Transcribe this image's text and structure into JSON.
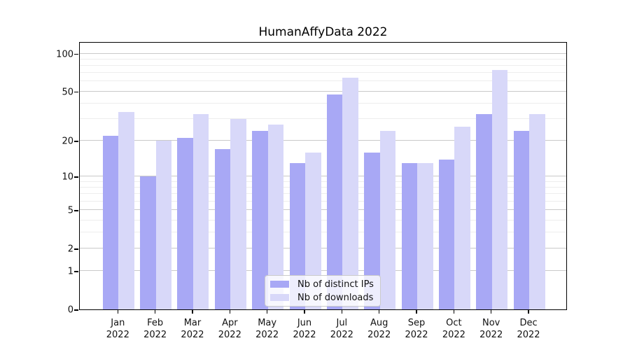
{
  "chart_data": {
    "type": "bar",
    "title": "HumanAffyData 2022",
    "categories": [
      "Jan",
      "Feb",
      "Mar",
      "Apr",
      "May",
      "Jun",
      "Jul",
      "Aug",
      "Sep",
      "Oct",
      "Nov",
      "Dec"
    ],
    "category_subline": "2022",
    "series": [
      {
        "name": "Nb of distinct IPs",
        "color": "#a8a8f5",
        "values": [
          22,
          10,
          21,
          17,
          24,
          13,
          47,
          16,
          13,
          14,
          33,
          24
        ]
      },
      {
        "name": "Nb of downloads",
        "color": "#d8d8f9",
        "values": [
          34,
          20,
          33,
          30,
          27,
          16,
          64,
          24,
          13,
          26,
          74,
          33
        ]
      }
    ],
    "xlabel": "",
    "ylabel": "",
    "yscale": "log1p",
    "ylim": [
      0,
      125
    ],
    "yticks_major": [
      0,
      1,
      2,
      5,
      10,
      20,
      50,
      100
    ],
    "yticks_minor": [
      3,
      4,
      6,
      7,
      8,
      9,
      30,
      40,
      60,
      70,
      80,
      90
    ],
    "grid": true,
    "legend_position": "lower center",
    "colors": {
      "grid_major": "#c9c9c9",
      "grid_minor": "#ededed",
      "spine": "#000000",
      "text": "#111111",
      "background": "#ffffff"
    }
  }
}
